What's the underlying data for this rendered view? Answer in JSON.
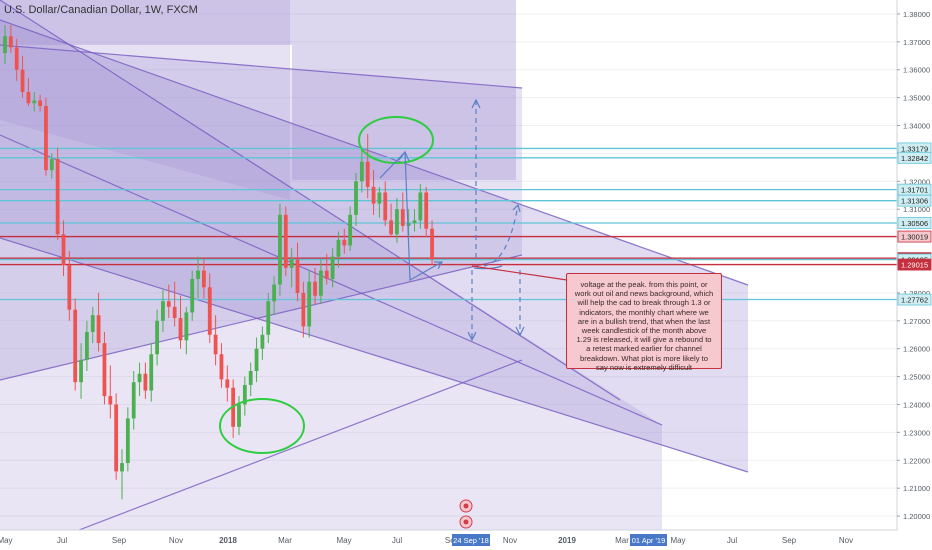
{
  "title": "U.S. Dollar/Canadian Dollar, 1W, FXCM",
  "colors": {
    "up": "#4caf50",
    "down": "#ef5350",
    "channel_fill": "#9c8ad0",
    "channel_line": "#7b5fc2",
    "hline_blue": "#5fc4d6",
    "hline_red": "#c62f3e",
    "annotation_green": "#2ecc40",
    "arrow": "#5b7fc4"
  },
  "chart_data": {
    "type": "candlestick",
    "ylim": [
      1.195,
      1.385
    ],
    "yticks": [
      "1.38000",
      "1.37000",
      "1.36000",
      "1.35000",
      "1.34000",
      "1.33000",
      "1.32000",
      "1.31000",
      "1.30000",
      "1.29000",
      "1.28000",
      "1.27000",
      "1.26000",
      "1.25000",
      "1.24000",
      "1.23000",
      "1.22000",
      "1.21000",
      "1.20000"
    ],
    "xticks": [
      "May",
      "Jul",
      "Sep",
      "Nov",
      "2018",
      "Mar",
      "May",
      "Jul",
      "Sep",
      "Nov",
      "2019",
      "Mar",
      "May",
      "Jul",
      "Sep",
      "Nov"
    ],
    "x_markers": [
      "24 Sep '18",
      "01 Apr '19"
    ],
    "price_labels": [
      {
        "value": 1.33179,
        "text": "1.33179",
        "kind": "blue"
      },
      {
        "value": 1.32842,
        "text": "1.32842",
        "kind": "blue"
      },
      {
        "value": 1.31701,
        "text": "1.31701",
        "kind": "blue"
      },
      {
        "value": 1.31306,
        "text": "1.31306",
        "kind": "blue"
      },
      {
        "value": 1.30506,
        "text": "1.30506",
        "kind": "blue"
      },
      {
        "value": 1.30019,
        "text": "1.30019",
        "kind": "red"
      },
      {
        "value": 1.29245,
        "text": "1.29245",
        "kind": "red"
      },
      {
        "value": 1.29195,
        "text": "1.29195",
        "kind": "blue"
      },
      {
        "value": 1.29015,
        "text": "1.29015",
        "kind": "red"
      },
      {
        "value": 1.27762,
        "text": "1.27762",
        "kind": "blue"
      }
    ],
    "candles": [
      {
        "o": 1.366,
        "h": 1.376,
        "l": 1.362,
        "c": 1.372
      },
      {
        "o": 1.372,
        "h": 1.376,
        "l": 1.366,
        "c": 1.368
      },
      {
        "o": 1.368,
        "h": 1.371,
        "l": 1.356,
        "c": 1.36
      },
      {
        "o": 1.36,
        "h": 1.365,
        "l": 1.35,
        "c": 1.352
      },
      {
        "o": 1.352,
        "h": 1.357,
        "l": 1.347,
        "c": 1.348
      },
      {
        "o": 1.348,
        "h": 1.352,
        "l": 1.345,
        "c": 1.349
      },
      {
        "o": 1.349,
        "h": 1.351,
        "l": 1.345,
        "c": 1.347
      },
      {
        "o": 1.347,
        "h": 1.35,
        "l": 1.322,
        "c": 1.324
      },
      {
        "o": 1.324,
        "h": 1.33,
        "l": 1.321,
        "c": 1.328
      },
      {
        "o": 1.328,
        "h": 1.332,
        "l": 1.299,
        "c": 1.301
      },
      {
        "o": 1.301,
        "h": 1.306,
        "l": 1.286,
        "c": 1.29
      },
      {
        "o": 1.29,
        "h": 1.295,
        "l": 1.27,
        "c": 1.274
      },
      {
        "o": 1.274,
        "h": 1.278,
        "l": 1.245,
        "c": 1.248
      },
      {
        "o": 1.248,
        "h": 1.262,
        "l": 1.242,
        "c": 1.256
      },
      {
        "o": 1.256,
        "h": 1.27,
        "l": 1.252,
        "c": 1.266
      },
      {
        "o": 1.266,
        "h": 1.275,
        "l": 1.262,
        "c": 1.272
      },
      {
        "o": 1.272,
        "h": 1.28,
        "l": 1.259,
        "c": 1.262
      },
      {
        "o": 1.262,
        "h": 1.266,
        "l": 1.24,
        "c": 1.243
      },
      {
        "o": 1.243,
        "h": 1.254,
        "l": 1.235,
        "c": 1.24
      },
      {
        "o": 1.24,
        "h": 1.244,
        "l": 1.213,
        "c": 1.216
      },
      {
        "o": 1.216,
        "h": 1.224,
        "l": 1.206,
        "c": 1.219
      },
      {
        "o": 1.219,
        "h": 1.239,
        "l": 1.216,
        "c": 1.235
      },
      {
        "o": 1.235,
        "h": 1.252,
        "l": 1.231,
        "c": 1.248
      },
      {
        "o": 1.248,
        "h": 1.255,
        "l": 1.243,
        "c": 1.251
      },
      {
        "o": 1.251,
        "h": 1.255,
        "l": 1.242,
        "c": 1.245
      },
      {
        "o": 1.245,
        "h": 1.262,
        "l": 1.241,
        "c": 1.258
      },
      {
        "o": 1.258,
        "h": 1.274,
        "l": 1.254,
        "c": 1.27
      },
      {
        "o": 1.27,
        "h": 1.281,
        "l": 1.266,
        "c": 1.277
      },
      {
        "o": 1.277,
        "h": 1.283,
        "l": 1.271,
        "c": 1.275
      },
      {
        "o": 1.275,
        "h": 1.284,
        "l": 1.268,
        "c": 1.271
      },
      {
        "o": 1.271,
        "h": 1.279,
        "l": 1.26,
        "c": 1.263
      },
      {
        "o": 1.263,
        "h": 1.275,
        "l": 1.258,
        "c": 1.273
      },
      {
        "o": 1.273,
        "h": 1.288,
        "l": 1.27,
        "c": 1.285
      },
      {
        "o": 1.285,
        "h": 1.293,
        "l": 1.278,
        "c": 1.288
      },
      {
        "o": 1.288,
        "h": 1.292,
        "l": 1.278,
        "c": 1.282
      },
      {
        "o": 1.282,
        "h": 1.287,
        "l": 1.262,
        "c": 1.265
      },
      {
        "o": 1.265,
        "h": 1.272,
        "l": 1.254,
        "c": 1.258
      },
      {
        "o": 1.258,
        "h": 1.262,
        "l": 1.246,
        "c": 1.249
      },
      {
        "o": 1.249,
        "h": 1.254,
        "l": 1.241,
        "c": 1.246
      },
      {
        "o": 1.246,
        "h": 1.249,
        "l": 1.228,
        "c": 1.232
      },
      {
        "o": 1.232,
        "h": 1.243,
        "l": 1.229,
        "c": 1.24
      },
      {
        "o": 1.24,
        "h": 1.25,
        "l": 1.236,
        "c": 1.247
      },
      {
        "o": 1.247,
        "h": 1.255,
        "l": 1.243,
        "c": 1.252
      },
      {
        "o": 1.252,
        "h": 1.264,
        "l": 1.248,
        "c": 1.26
      },
      {
        "o": 1.26,
        "h": 1.268,
        "l": 1.256,
        "c": 1.265
      },
      {
        "o": 1.265,
        "h": 1.28,
        "l": 1.262,
        "c": 1.277
      },
      {
        "o": 1.277,
        "h": 1.286,
        "l": 1.272,
        "c": 1.283
      },
      {
        "o": 1.283,
        "h": 1.312,
        "l": 1.279,
        "c": 1.308
      },
      {
        "o": 1.308,
        "h": 1.311,
        "l": 1.286,
        "c": 1.289
      },
      {
        "o": 1.289,
        "h": 1.296,
        "l": 1.282,
        "c": 1.292
      },
      {
        "o": 1.292,
        "h": 1.298,
        "l": 1.277,
        "c": 1.28
      },
      {
        "o": 1.28,
        "h": 1.284,
        "l": 1.264,
        "c": 1.268
      },
      {
        "o": 1.268,
        "h": 1.288,
        "l": 1.264,
        "c": 1.284
      },
      {
        "o": 1.284,
        "h": 1.289,
        "l": 1.276,
        "c": 1.279
      },
      {
        "o": 1.279,
        "h": 1.292,
        "l": 1.276,
        "c": 1.288
      },
      {
        "o": 1.288,
        "h": 1.294,
        "l": 1.283,
        "c": 1.285
      },
      {
        "o": 1.285,
        "h": 1.296,
        "l": 1.282,
        "c": 1.293
      },
      {
        "o": 1.293,
        "h": 1.302,
        "l": 1.289,
        "c": 1.299
      },
      {
        "o": 1.299,
        "h": 1.303,
        "l": 1.294,
        "c": 1.297
      },
      {
        "o": 1.297,
        "h": 1.311,
        "l": 1.295,
        "c": 1.308
      },
      {
        "o": 1.308,
        "h": 1.323,
        "l": 1.304,
        "c": 1.32
      },
      {
        "o": 1.32,
        "h": 1.332,
        "l": 1.316,
        "c": 1.327
      },
      {
        "o": 1.327,
        "h": 1.337,
        "l": 1.314,
        "c": 1.318
      },
      {
        "o": 1.318,
        "h": 1.324,
        "l": 1.308,
        "c": 1.312
      },
      {
        "o": 1.312,
        "h": 1.318,
        "l": 1.307,
        "c": 1.316
      },
      {
        "o": 1.316,
        "h": 1.32,
        "l": 1.304,
        "c": 1.306
      },
      {
        "o": 1.306,
        "h": 1.312,
        "l": 1.3,
        "c": 1.301
      },
      {
        "o": 1.301,
        "h": 1.314,
        "l": 1.298,
        "c": 1.31
      },
      {
        "o": 1.31,
        "h": 1.316,
        "l": 1.302,
        "c": 1.304
      },
      {
        "o": 1.304,
        "h": 1.31,
        "l": 1.3,
        "c": 1.305
      },
      {
        "o": 1.305,
        "h": 1.31,
        "l": 1.302,
        "c": 1.306
      },
      {
        "o": 1.306,
        "h": 1.319,
        "l": 1.303,
        "c": 1.316
      },
      {
        "o": 1.316,
        "h": 1.318,
        "l": 1.3,
        "c": 1.303
      },
      {
        "o": 1.303,
        "h": 1.306,
        "l": 1.29,
        "c": 1.292
      }
    ]
  },
  "note": {
    "text": "voltage at the peak. from this point, or work out oil and news background, which will help the cad to break through 1.3 or indicators, the monthly chart where we are in a bullish trend, that when the last week candlestick of the month above 1.29 is released, it will give a rebound to a retest marked earlier for channel breakdown. What plot is more likely to say now is extremely difficult"
  }
}
